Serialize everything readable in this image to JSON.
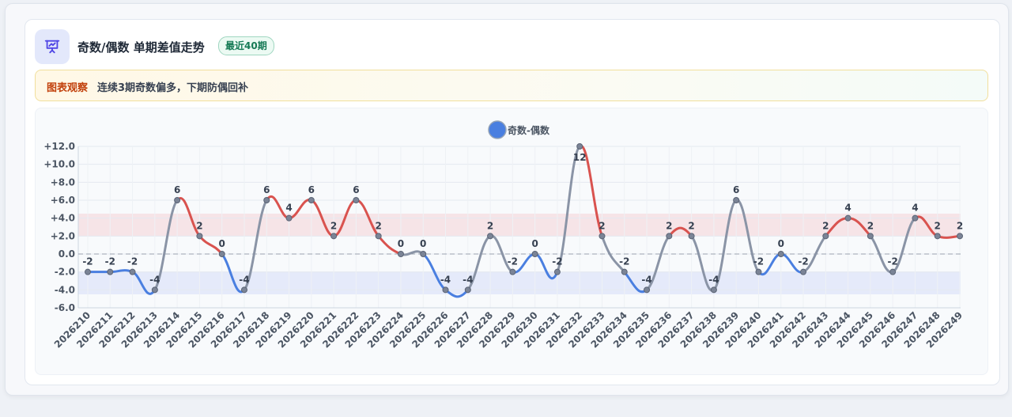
{
  "header": {
    "title": "奇数/偶数 单期差值走势",
    "badge": "最近40期",
    "icon": "presentation-chart-icon"
  },
  "observation": {
    "tag": "图表观察",
    "text": "连续3期奇数偏多，下期防偶回补"
  },
  "colors": {
    "positive": "#d9534f",
    "negative": "#4a7fe0",
    "neutral": "#8a94a6",
    "legend": "#4a7fe0"
  },
  "chart_data": {
    "type": "line",
    "legend": [
      "奇数-偶数"
    ],
    "ylim": [
      -6,
      12
    ],
    "yticks": [
      "-6.0",
      "-4.0",
      "-2.0",
      "0.0",
      "+2.0",
      "+4.0",
      "+6.0",
      "+8.0",
      "+10.0",
      "+12.0"
    ],
    "bands": [
      [
        2,
        4.5
      ],
      [
        -4.5,
        -2
      ]
    ],
    "categories": [
      "2026210",
      "2026211",
      "2026212",
      "2026213",
      "2026214",
      "2026215",
      "2026216",
      "2026217",
      "2026218",
      "2026219",
      "2026220",
      "2026221",
      "2026222",
      "2026223",
      "2026224",
      "2026225",
      "2026226",
      "2026227",
      "2026228",
      "2026229",
      "2026230",
      "2026231",
      "2026232",
      "2026233",
      "2026234",
      "2026235",
      "2026236",
      "2026237",
      "2026238",
      "2026239",
      "2026240",
      "2026241",
      "2026242",
      "2026243",
      "2026244",
      "2026245",
      "2026246",
      "2026247",
      "2026248",
      "2026249"
    ],
    "series": [
      {
        "name": "奇数-偶数",
        "values": [
          -2,
          -2,
          -2,
          -4,
          6,
          2,
          0,
          -4,
          6,
          4,
          6,
          2,
          6,
          2,
          0,
          0,
          -4,
          -4,
          2,
          -2,
          0,
          -2,
          12,
          2,
          -2,
          -4,
          2,
          2,
          -4,
          6,
          -2,
          0,
          -2,
          2,
          4,
          2,
          -2,
          4,
          2,
          2
        ],
        "labels": [
          "-2",
          "-2",
          "-2",
          "-4",
          "6",
          "2",
          "0",
          "-4",
          "6",
          "4",
          "6",
          "2",
          "6",
          "2",
          "0",
          "0",
          "-4",
          "-4",
          "2",
          "-2",
          "0",
          "-2",
          "12",
          "2",
          "-2",
          "-4",
          "2",
          "2",
          "-4",
          "6",
          "-2",
          "0",
          "-2",
          "2",
          "4",
          "2",
          "-2",
          "4",
          "2",
          "2"
        ]
      }
    ]
  }
}
